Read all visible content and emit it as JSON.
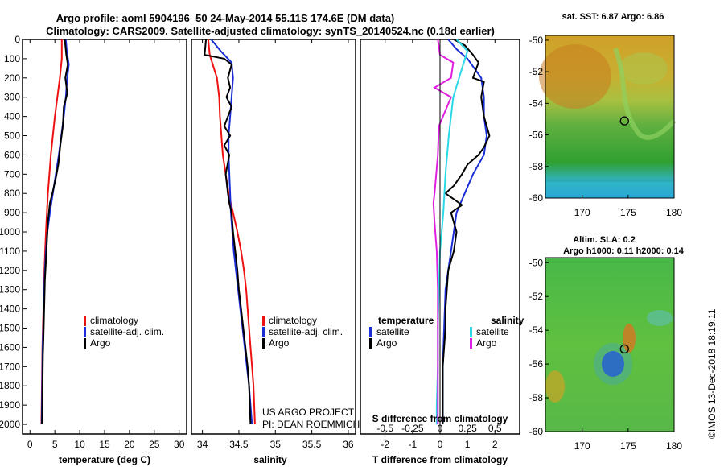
{
  "header": {
    "title_line1": "Argo profile: aoml 5904196_50 24-May-2014 55.11S 174.6E (DM data)",
    "title_line2": "Climatology: CARS2009. Satellite-adjusted climatology: synTS_20140524.nc (0.18d earlier)"
  },
  "colors": {
    "climatology": "#ee1111",
    "satellite": "#1a2ed6",
    "argo": "#000000",
    "sat_salinity": "#2ad8e8",
    "argo_salinity": "#e020e0"
  },
  "depth_ticks": [
    "0",
    "100",
    "200",
    "300",
    "400",
    "500",
    "600",
    "700",
    "800",
    "900",
    "1000",
    "1100",
    "1200",
    "1300",
    "1400",
    "1500",
    "1600",
    "1700",
    "1800",
    "1900",
    "2000"
  ],
  "chart_data": [
    {
      "type": "line",
      "panel": "temperature",
      "xlabel": "temperature (deg C)",
      "xticks": [
        "0",
        "5",
        "10",
        "15",
        "20",
        "25",
        "30"
      ],
      "xlim": [
        -1.5,
        31.5
      ],
      "ylim": [
        2050,
        0
      ],
      "legend": {
        "placement": "lower-center",
        "entries": [
          "climatology",
          "satellite-adj. clim.",
          "Argo"
        ]
      },
      "series": [
        {
          "name": "climatology",
          "color": "#ee1111",
          "points": [
            [
              6.4,
              0
            ],
            [
              6.4,
              100
            ],
            [
              6.0,
              200
            ],
            [
              5.5,
              300
            ],
            [
              5.0,
              400
            ],
            [
              4.6,
              500
            ],
            [
              4.2,
              600
            ],
            [
              3.9,
              700
            ],
            [
              3.6,
              800
            ],
            [
              3.4,
              900
            ],
            [
              3.2,
              1000
            ],
            [
              3.05,
              1100
            ],
            [
              2.9,
              1200
            ],
            [
              2.8,
              1300
            ],
            [
              2.7,
              1400
            ],
            [
              2.6,
              1500
            ],
            [
              2.5,
              1600
            ],
            [
              2.45,
              1700
            ],
            [
              2.4,
              1800
            ],
            [
              2.35,
              1900
            ],
            [
              2.3,
              2000
            ]
          ]
        },
        {
          "name": "satellite-adj. clim.",
          "color": "#1a2ed6",
          "points": [
            [
              7.2,
              0
            ],
            [
              7.4,
              60
            ],
            [
              7.8,
              130
            ],
            [
              7.5,
              200
            ],
            [
              7.2,
              300
            ],
            [
              6.8,
              400
            ],
            [
              6.3,
              500
            ],
            [
              5.8,
              600
            ],
            [
              5.2,
              700
            ],
            [
              4.6,
              800
            ],
            [
              4.0,
              900
            ],
            [
              3.5,
              1000
            ],
            [
              3.2,
              1100
            ],
            [
              3.0,
              1200
            ],
            [
              2.85,
              1300
            ],
            [
              2.75,
              1400
            ],
            [
              2.65,
              1500
            ],
            [
              2.55,
              1600
            ],
            [
              2.5,
              1700
            ],
            [
              2.45,
              1800
            ],
            [
              2.4,
              1900
            ],
            [
              2.35,
              2000
            ]
          ]
        },
        {
          "name": "Argo",
          "color": "#000000",
          "points": [
            [
              7.0,
              0
            ],
            [
              7.3,
              80
            ],
            [
              7.6,
              130
            ],
            [
              7.1,
              200
            ],
            [
              7.5,
              280
            ],
            [
              6.8,
              350
            ],
            [
              6.6,
              450
            ],
            [
              6.1,
              550
            ],
            [
              5.7,
              650
            ],
            [
              5.2,
              720
            ],
            [
              4.5,
              800
            ],
            [
              4.0,
              850
            ],
            [
              3.6,
              950
            ],
            [
              3.4,
              1050
            ],
            [
              3.2,
              1150
            ],
            [
              3.0,
              1250
            ],
            [
              2.9,
              1350
            ],
            [
              2.8,
              1450
            ],
            [
              2.7,
              1550
            ],
            [
              2.6,
              1650
            ],
            [
              2.55,
              1750
            ],
            [
              2.5,
              1850
            ],
            [
              2.45,
              1950
            ],
            [
              2.4,
              2000
            ]
          ]
        }
      ]
    },
    {
      "type": "line",
      "panel": "salinity",
      "xlabel": "salinity",
      "xticks": [
        "34",
        "34.5",
        "35",
        "35.5",
        "36"
      ],
      "xlim": [
        33.85,
        36.1
      ],
      "ylim": [
        2050,
        0
      ],
      "legend": {
        "placement": "lower-center",
        "entries": [
          "climatology",
          "satellite-adj. clim.",
          "Argo"
        ]
      },
      "annotation": [
        "US ARGO PROJECT",
        "PI: DEAN ROEMMICH"
      ],
      "series": [
        {
          "name": "climatology",
          "color": "#ee1111",
          "points": [
            [
              34.08,
              0
            ],
            [
              34.1,
              80
            ],
            [
              34.2,
              200
            ],
            [
              34.23,
              300
            ],
            [
              34.24,
              400
            ],
            [
              34.26,
              500
            ],
            [
              34.28,
              600
            ],
            [
              34.32,
              700
            ],
            [
              34.36,
              800
            ],
            [
              34.42,
              900
            ],
            [
              34.48,
              1000
            ],
            [
              34.53,
              1100
            ],
            [
              34.57,
              1200
            ],
            [
              34.6,
              1300
            ],
            [
              34.62,
              1400
            ],
            [
              34.64,
              1500
            ],
            [
              34.66,
              1600
            ],
            [
              34.68,
              1700
            ],
            [
              34.7,
              1800
            ],
            [
              34.71,
              1900
            ],
            [
              34.72,
              2000
            ]
          ]
        },
        {
          "name": "satellite-adj. clim.",
          "color": "#1a2ed6",
          "points": [
            [
              34.12,
              0
            ],
            [
              34.25,
              60
            ],
            [
              34.4,
              120
            ],
            [
              34.42,
              200
            ],
            [
              34.4,
              300
            ],
            [
              34.38,
              400
            ],
            [
              34.36,
              500
            ],
            [
              34.36,
              600
            ],
            [
              34.37,
              700
            ],
            [
              34.38,
              800
            ],
            [
              34.39,
              900
            ],
            [
              34.41,
              1000
            ],
            [
              34.43,
              1100
            ],
            [
              34.46,
              1200
            ],
            [
              34.49,
              1300
            ],
            [
              34.52,
              1400
            ],
            [
              34.55,
              1500
            ],
            [
              34.58,
              1600
            ],
            [
              34.61,
              1700
            ],
            [
              34.64,
              1800
            ],
            [
              34.66,
              1900
            ],
            [
              34.68,
              2000
            ]
          ]
        },
        {
          "name": "Argo",
          "color": "#000000",
          "points": [
            [
              34.05,
              0
            ],
            [
              34.03,
              80
            ],
            [
              34.3,
              100
            ],
            [
              34.4,
              130
            ],
            [
              34.35,
              200
            ],
            [
              34.38,
              250
            ],
            [
              34.33,
              300
            ],
            [
              34.4,
              350
            ],
            [
              34.3,
              450
            ],
            [
              34.38,
              500
            ],
            [
              34.3,
              550
            ],
            [
              34.37,
              600
            ],
            [
              34.32,
              700
            ],
            [
              34.35,
              800
            ],
            [
              34.37,
              850
            ],
            [
              34.4,
              900
            ],
            [
              34.42,
              1000
            ],
            [
              34.45,
              1100
            ],
            [
              34.48,
              1200
            ],
            [
              34.5,
              1300
            ],
            [
              34.53,
              1400
            ],
            [
              34.56,
              1500
            ],
            [
              34.59,
              1600
            ],
            [
              34.62,
              1700
            ],
            [
              34.64,
              1800
            ],
            [
              34.65,
              1900
            ],
            [
              34.66,
              2000
            ]
          ]
        }
      ]
    },
    {
      "type": "line",
      "panel": "difference",
      "xlabel": "T difference from climatology",
      "xlabel_top": "S difference from climatology",
      "xticks": [
        "-2",
        "-1",
        "0",
        "1",
        "2"
      ],
      "xticks_top": [
        "-0.5",
        "-0.25",
        "0",
        "0.25",
        "0.5"
      ],
      "xlim": [
        -2.9,
        2.9
      ],
      "ylim": [
        2050,
        0
      ],
      "legend": {
        "placement": "lower-center",
        "temperature_title": "temperature",
        "salinity_title": "salinity",
        "entries": [
          "satellite",
          "Argo",
          "satellite",
          "Argo"
        ]
      },
      "series": [
        {
          "name": "satellite",
          "group": "temperature",
          "color": "#1a2ed6",
          "points": [
            [
              0.3,
              0
            ],
            [
              0.6,
              50
            ],
            [
              1.0,
              100
            ],
            [
              1.5,
              200
            ],
            [
              1.6,
              300
            ],
            [
              1.6,
              400
            ],
            [
              1.7,
              500
            ],
            [
              1.6,
              600
            ],
            [
              1.2,
              700
            ],
            [
              0.9,
              800
            ],
            [
              0.6,
              900
            ],
            [
              0.5,
              1000
            ],
            [
              0.4,
              1100
            ],
            [
              0.3,
              1200
            ],
            [
              0.2,
              1300
            ],
            [
              0.15,
              1500
            ],
            [
              0.1,
              1700
            ],
            [
              0.1,
              1900
            ],
            [
              0.1,
              2000
            ]
          ]
        },
        {
          "name": "Argo",
          "group": "temperature",
          "color": "#000000",
          "points": [
            [
              0.5,
              0
            ],
            [
              0.9,
              30
            ],
            [
              1.2,
              80
            ],
            [
              1.4,
              120
            ],
            [
              1.2,
              200
            ],
            [
              1.6,
              220
            ],
            [
              1.5,
              300
            ],
            [
              1.6,
              400
            ],
            [
              1.8,
              500
            ],
            [
              1.6,
              560
            ],
            [
              1.4,
              600
            ],
            [
              1.0,
              650
            ],
            [
              0.8,
              700
            ],
            [
              0.5,
              760
            ],
            [
              0.2,
              800
            ],
            [
              0.8,
              860
            ],
            [
              0.4,
              900
            ],
            [
              0.6,
              1000
            ],
            [
              0.5,
              1100
            ],
            [
              0.3,
              1200
            ],
            [
              0.25,
              1300
            ],
            [
              0.2,
              1400
            ],
            [
              0.2,
              1500
            ],
            [
              0.1,
              1700
            ],
            [
              0.1,
              1900
            ],
            [
              0.1,
              2000
            ]
          ]
        },
        {
          "name": "satellite",
          "group": "salinity",
          "color": "#2ad8e8",
          "points": [
            [
              0.15,
              0
            ],
            [
              0.25,
              60
            ],
            [
              0.2,
              150
            ],
            [
              0.12,
              300
            ],
            [
              0.08,
              500
            ],
            [
              0.05,
              700
            ],
            [
              0.03,
              900
            ],
            [
              0.0,
              1100
            ],
            [
              -0.01,
              1300
            ],
            [
              -0.02,
              1500
            ],
            [
              -0.02,
              1700
            ],
            [
              -0.03,
              1900
            ],
            [
              -0.03,
              2000
            ]
          ]
        },
        {
          "name": "Argo",
          "group": "salinity",
          "color": "#e020e0",
          "points": [
            [
              -0.02,
              0
            ],
            [
              0.0,
              80
            ],
            [
              0.12,
              120
            ],
            [
              0.1,
              200
            ],
            [
              -0.05,
              250
            ],
            [
              0.1,
              300
            ],
            [
              -0.01,
              450
            ],
            [
              -0.02,
              600
            ],
            [
              -0.05,
              800
            ],
            [
              -0.06,
              850
            ],
            [
              -0.05,
              950
            ],
            [
              -0.03,
              1100
            ],
            [
              -0.02,
              1300
            ],
            [
              -0.02,
              1500
            ],
            [
              -0.02,
              1700
            ],
            [
              -0.02,
              1900
            ],
            [
              -0.02,
              2000
            ]
          ]
        }
      ]
    },
    {
      "type": "heatmap",
      "panel": "sst_map",
      "title": "sat. SST: 6.87 Argo: 6.86",
      "xticks": [
        "170",
        "175",
        "180"
      ],
      "yticks": [
        "-50",
        "-52",
        "-54",
        "-56",
        "-58",
        "-60"
      ],
      "xlim": [
        166.0,
        180.0
      ],
      "ylim": [
        -60.0,
        -49.7
      ],
      "marker": {
        "lon": 174.6,
        "lat": -55.11
      }
    },
    {
      "type": "heatmap",
      "panel": "sla_map",
      "title": "Altim. SLA: 0.2",
      "subtitle": "Argo h1000: 0.11 h2000: 0.14",
      "xticks": [
        "170",
        "175",
        "180"
      ],
      "yticks": [
        "-50",
        "-52",
        "-54",
        "-56",
        "-58",
        "-60"
      ],
      "xlim": [
        166.0,
        180.0
      ],
      "ylim": [
        -60.0,
        -49.7
      ],
      "marker": {
        "lon": 174.6,
        "lat": -55.11
      }
    }
  ],
  "footer": {
    "credit": "©IMOS 13-Dec-2018 18:19:11"
  }
}
